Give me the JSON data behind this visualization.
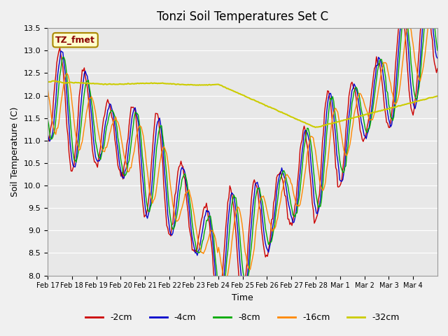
{
  "title": "Tonzi Soil Temperatures Set C",
  "xlabel": "Time",
  "ylabel": "Soil Temperature (C)",
  "ylim": [
    8.0,
    13.5
  ],
  "annotation": "TZ_fmet",
  "series_colors": {
    "-2cm": "#cc0000",
    "-4cm": "#0000cc",
    "-8cm": "#00aa00",
    "-16cm": "#ff8800",
    "-32cm": "#cccc00"
  },
  "x_tick_labels": [
    "Feb 17",
    "Feb 18",
    "Feb 19",
    "Feb 20",
    "Feb 21",
    "Feb 22",
    "Feb 23",
    "Feb 24",
    "Feb 25",
    "Feb 26",
    "Feb 27",
    "Feb 28",
    "Mar 1",
    "Mar 2",
    "Mar 3",
    "Mar 4"
  ],
  "legend_labels": [
    "-2cm",
    "-4cm",
    "-8cm",
    "-16cm",
    "-32cm"
  ]
}
